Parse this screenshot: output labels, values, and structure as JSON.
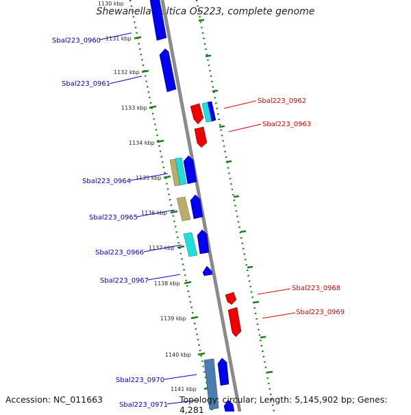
{
  "header": {
    "title": "Shewanella baltica OS223, complete genome"
  },
  "footer": {
    "accession": "Accession: NC_011663",
    "summary": "Topology: circular; Length: 5,145,902 bp; Genes: 4,281"
  },
  "colors": {
    "forward_gene": "#0000ee",
    "reverse_gene": "#ee0000",
    "forward_label": "#0000cc",
    "reverse_label": "#dd0000",
    "backbone": "#888888",
    "tick": "#1a7a1a"
  },
  "kbp_ticks": [
    "1130 kbp",
    "1131 kbp",
    "1132 kbp",
    "1133 kbp",
    "1134 kbp",
    "1135 kbp",
    "1136 kbp",
    "1137 kbp",
    "1138 kbp",
    "1139 kbp",
    "1140 kbp",
    "1141 kbp"
  ],
  "gene_labels": {
    "forward": [
      "Sbal223_0960",
      "Sbal223_0961",
      "Sbal223_0964",
      "Sbal223_0965",
      "Sbal223_0966",
      "Sbal223_0967",
      "Sbal223_0970",
      "Sbal223_0971"
    ],
    "reverse": [
      "Sbal223_0962",
      "Sbal223_0963",
      "Sbal223_0968",
      "Sbal223_0969"
    ]
  }
}
